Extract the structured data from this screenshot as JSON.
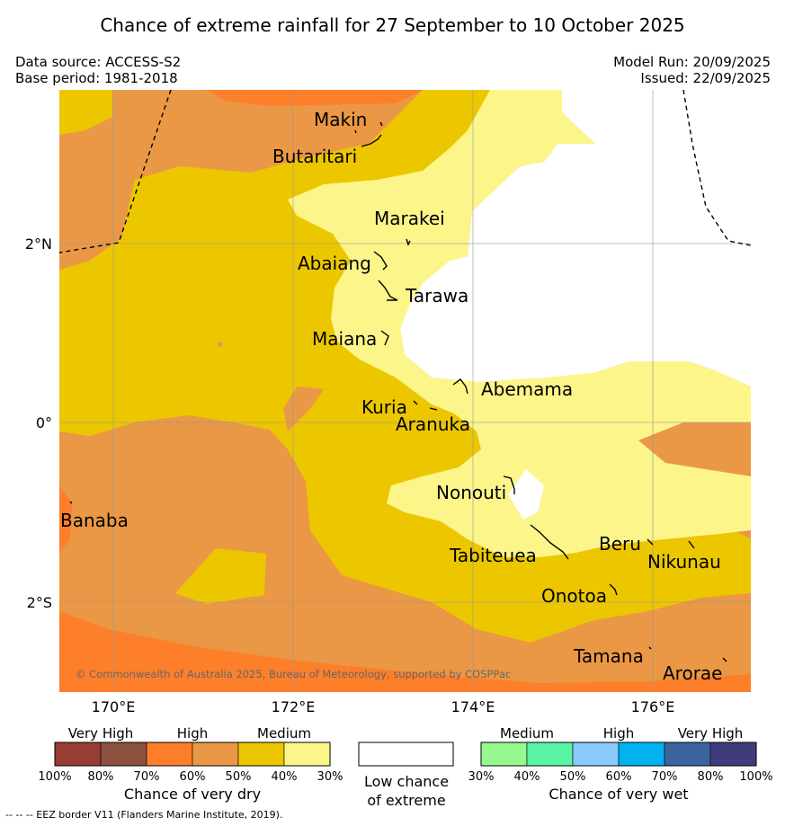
{
  "title": "Chance of extreme rainfall for 27 September to 10 October 2025",
  "meta": {
    "data_source": "Data source: ACCESS-S2",
    "base_period": "Base period: 1981-2018",
    "model_run": "Model Run: 20/09/2025",
    "issued": "Issued: 22/09/2025"
  },
  "map": {
    "lon_ticks": [
      "170°E",
      "172°E",
      "174°E",
      "176°E"
    ],
    "lat_ticks": [
      "2°N",
      "0°",
      "2°S"
    ],
    "copyright": "© Commonwealth of Australia 2025, Bureau of Meteorology, supported by COSPPac",
    "places": [
      {
        "name": "Makin"
      },
      {
        "name": "Butaritari"
      },
      {
        "name": "Marakei"
      },
      {
        "name": "Abaiang"
      },
      {
        "name": "Tarawa"
      },
      {
        "name": "Maiana"
      },
      {
        "name": "Abemama"
      },
      {
        "name": "Kuria"
      },
      {
        "name": "Aranuka"
      },
      {
        "name": "Banaba"
      },
      {
        "name": "Nonouti"
      },
      {
        "name": "Tabiteuea"
      },
      {
        "name": "Beru"
      },
      {
        "name": "Nikunau"
      },
      {
        "name": "Onotoa"
      },
      {
        "name": "Tamana"
      },
      {
        "name": "Arorae"
      }
    ]
  },
  "legend": {
    "dry": {
      "categories": [
        "Very High",
        "High",
        "Medium"
      ],
      "colors": [
        "#973d33",
        "#8d5140",
        "#fd7f2a",
        "#ea9845",
        "#ecc700",
        "#fcf58a"
      ],
      "ticks": [
        "100%",
        "80%",
        "70%",
        "60%",
        "50%",
        "40%",
        "30%"
      ],
      "label": "Chance of very dry"
    },
    "low": {
      "line1": "Low chance",
      "line2": "of extreme",
      "color": "#ffffff"
    },
    "wet": {
      "categories": [
        "Medium",
        "High",
        "Very High"
      ],
      "colors": [
        "#97f890",
        "#59f5a4",
        "#8acafd",
        "#00b2ef",
        "#3b639e",
        "#3e3c7b"
      ],
      "ticks": [
        "30%",
        "40%",
        "50%",
        "60%",
        "70%",
        "80%",
        "100%"
      ],
      "label": "Chance of very wet"
    }
  },
  "footnote": "--  --  -- EEZ border V11 (Flanders Marine Institute, 2019).",
  "colors": {
    "high_dry": "#ea9845",
    "very_high_dry": "#fd7f2a",
    "medium_dry_50": "#ecc700",
    "medium_dry_40": "#fcf58a",
    "low": "#ffffff"
  }
}
